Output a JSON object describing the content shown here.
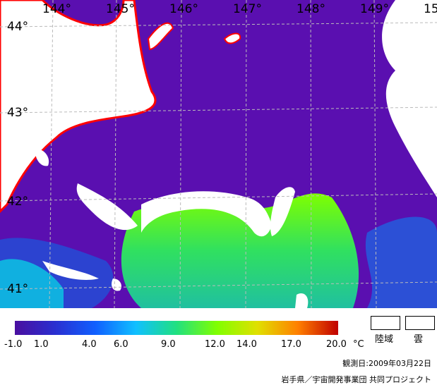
{
  "map": {
    "lon_labels": [
      "144°",
      "145°",
      "146°",
      "147°",
      "148°",
      "149°",
      "15"
    ],
    "lat_labels": [
      "44°",
      "43°",
      "42°",
      "41°"
    ]
  },
  "colorbar": {
    "ticks": [
      "-1.0",
      "1.0",
      "4.0",
      "6.0",
      "9.0",
      "12.0",
      "14.0",
      "17.0",
      "20.0"
    ],
    "unit": "°C",
    "colors": [
      "#4a0fa0",
      "#2a2fd0",
      "#1060ff",
      "#10c0ff",
      "#20e080",
      "#80ff00",
      "#e0e000",
      "#ff8000",
      "#c00000"
    ]
  },
  "legend": {
    "land_label": "陸域",
    "cloud_label": "雲"
  },
  "footer": {
    "date": "観測日:2009年03月22日",
    "credit": "岩手県／宇宙開発事業団 共同プロジェクト"
  }
}
